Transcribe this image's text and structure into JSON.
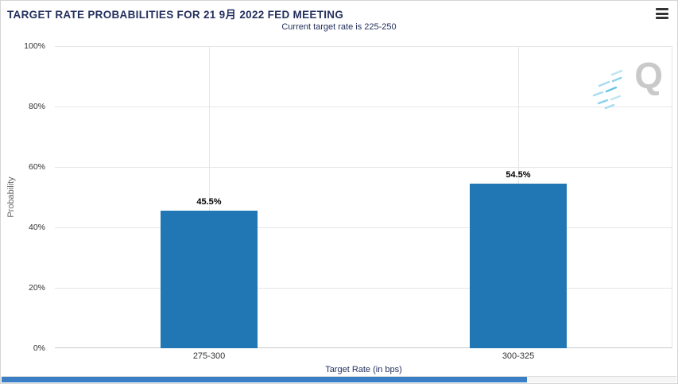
{
  "header": {
    "menu_icon": "hamburger-menu"
  },
  "chart_data": {
    "type": "bar",
    "title": "TARGET RATE PROBABILITIES FOR 21 9月 2022 FED MEETING",
    "subtitle": "Current target rate is 225-250",
    "categories": [
      "275-300",
      "300-325"
    ],
    "values": [
      45.5,
      54.5
    ],
    "bar_labels": [
      "45.5%",
      "54.5%"
    ],
    "xlabel": "Target Rate (in bps)",
    "ylabel": "Probability",
    "ylim": [
      0,
      100
    ],
    "y_ticks": [
      "0%",
      "20%",
      "40%",
      "60%",
      "80%",
      "100%"
    ],
    "grid": true,
    "legend": "none",
    "watermark_letter": "Q"
  },
  "colors": {
    "title": "#24305e",
    "subtitle": "#24305e",
    "axis_title": "#24305e",
    "ylabel": "#666666",
    "grid": "#e6e6e6",
    "bar": "#2077b4",
    "scrollbar_thumb": "#3a7fc6"
  }
}
